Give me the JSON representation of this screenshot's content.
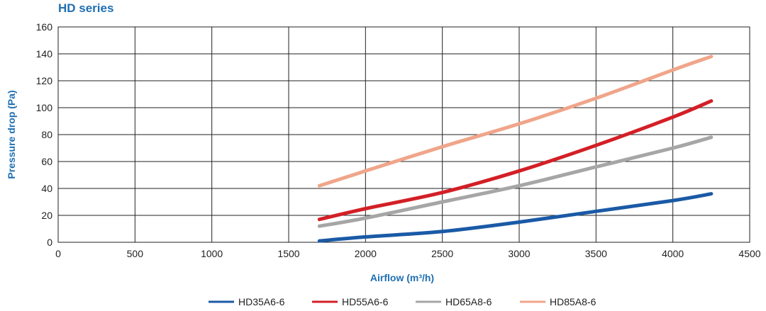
{
  "chart_data": {
    "type": "line",
    "title": "HD series",
    "xlabel": "Airflow (m³/h)",
    "ylabel": "Pressure drop (Pa)",
    "xlim": [
      0,
      4500
    ],
    "ylim": [
      0,
      160
    ],
    "x_ticks": [
      0,
      500,
      1000,
      1500,
      2000,
      2500,
      3000,
      3500,
      4000,
      4500
    ],
    "y_ticks": [
      0,
      20,
      40,
      60,
      80,
      100,
      120,
      140,
      160
    ],
    "x_tick_labels": [
      "0",
      "500",
      "1000",
      "1500",
      "2000",
      "2500",
      "3000",
      "3500",
      "4000",
      "4500"
    ],
    "y_tick_labels": [
      "0",
      "20",
      "40",
      "60",
      "80",
      "100",
      "120",
      "140",
      "160"
    ],
    "grid": true,
    "legend_position": "bottom",
    "title_color": "#1f6fb2",
    "series": [
      {
        "name": "HD35A6-6",
        "color": "#1a5aa6",
        "x": [
          1700,
          2000,
          2500,
          3000,
          3500,
          4000,
          4250
        ],
        "y": [
          1,
          4,
          8,
          15,
          23,
          31,
          36
        ]
      },
      {
        "name": "HD55A6-6",
        "color": "#d31f26",
        "x": [
          1700,
          2000,
          2500,
          3000,
          3500,
          4000,
          4250
        ],
        "y": [
          17,
          25,
          37,
          53,
          72,
          93,
          105
        ]
      },
      {
        "name": "HD65A8-6",
        "color": "#a6a6a6",
        "x": [
          1700,
          2000,
          2500,
          3000,
          3500,
          4000,
          4250
        ],
        "y": [
          12,
          18,
          30,
          42,
          56,
          70,
          78
        ]
      },
      {
        "name": "HD85A8-6",
        "color": "#f0a58a",
        "x": [
          1700,
          2000,
          2500,
          3000,
          3500,
          4000,
          4250
        ],
        "y": [
          42,
          53,
          71,
          88,
          107,
          128,
          138
        ]
      }
    ]
  }
}
